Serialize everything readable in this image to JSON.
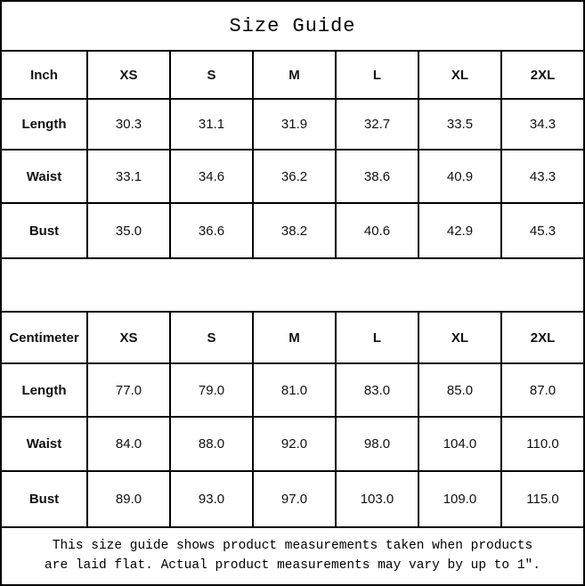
{
  "title": "Size Guide",
  "inch_table": {
    "unit_label": "Inch",
    "columns": [
      "XS",
      "S",
      "M",
      "L",
      "XL",
      "2XL"
    ],
    "rows": [
      {
        "label": "Length",
        "values": [
          "30.3",
          "31.1",
          "31.9",
          "32.7",
          "33.5",
          "34.3"
        ]
      },
      {
        "label": "Waist",
        "values": [
          "33.1",
          "34.6",
          "36.2",
          "38.6",
          "40.9",
          "43.3"
        ]
      },
      {
        "label": "Bust",
        "values": [
          "35.0",
          "36.6",
          "38.2",
          "40.6",
          "42.9",
          "45.3"
        ]
      }
    ]
  },
  "cm_table": {
    "unit_label": "Centimeter",
    "columns": [
      "XS",
      "S",
      "M",
      "L",
      "XL",
      "2XL"
    ],
    "rows": [
      {
        "label": "Length",
        "values": [
          "77.0",
          "79.0",
          "81.0",
          "83.0",
          "85.0",
          "87.0"
        ]
      },
      {
        "label": "Waist",
        "values": [
          "84.0",
          "88.0",
          "92.0",
          "98.0",
          "104.0",
          "110.0"
        ]
      },
      {
        "label": "Bust",
        "values": [
          "89.0",
          "93.0",
          "97.0",
          "103.0",
          "109.0",
          "115.0"
        ]
      }
    ]
  },
  "footer": {
    "line1": "This size guide shows product measurements taken when products",
    "line2": "are laid flat. Actual product measurements may vary by up to 1″."
  }
}
